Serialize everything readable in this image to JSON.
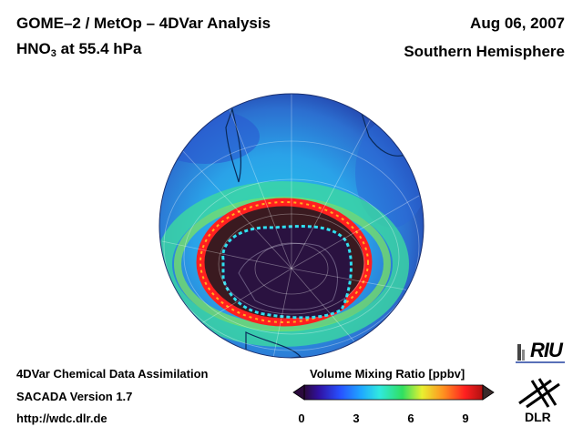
{
  "title": {
    "line1": "GOME–2 / MetOp – 4DVar Analysis",
    "species_prefix": "HNO",
    "species_subscript": "3",
    "species_suffix": " at 55.4 hPa"
  },
  "date": "Aug 06, 2007",
  "region": "Southern Hemisphere",
  "footer": {
    "line1": "4DVar Chemical Data Assimilation",
    "line2": "SACADA Version 1.7",
    "line3": "http://wdc.dlr.de"
  },
  "colorbar": {
    "title": "Volume Mixing Ratio [ppbv]",
    "ticks": [
      "0",
      "3",
      "6",
      "9"
    ],
    "range": [
      0,
      10
    ],
    "stops": [
      "#2b0a3d",
      "#3010a0",
      "#2850ff",
      "#1fa8ff",
      "#30e8e0",
      "#30e060",
      "#e8f030",
      "#ff9020",
      "#ff2020",
      "#b01010"
    ]
  },
  "logos": {
    "riu": "RIU",
    "dlr": "DLR"
  },
  "colors": {
    "ocean_outer": "#2d8ad8",
    "band_green": "#3cd8a0",
    "vortex_interior": "#2a1240",
    "vortex_edge": "#ff2020"
  }
}
